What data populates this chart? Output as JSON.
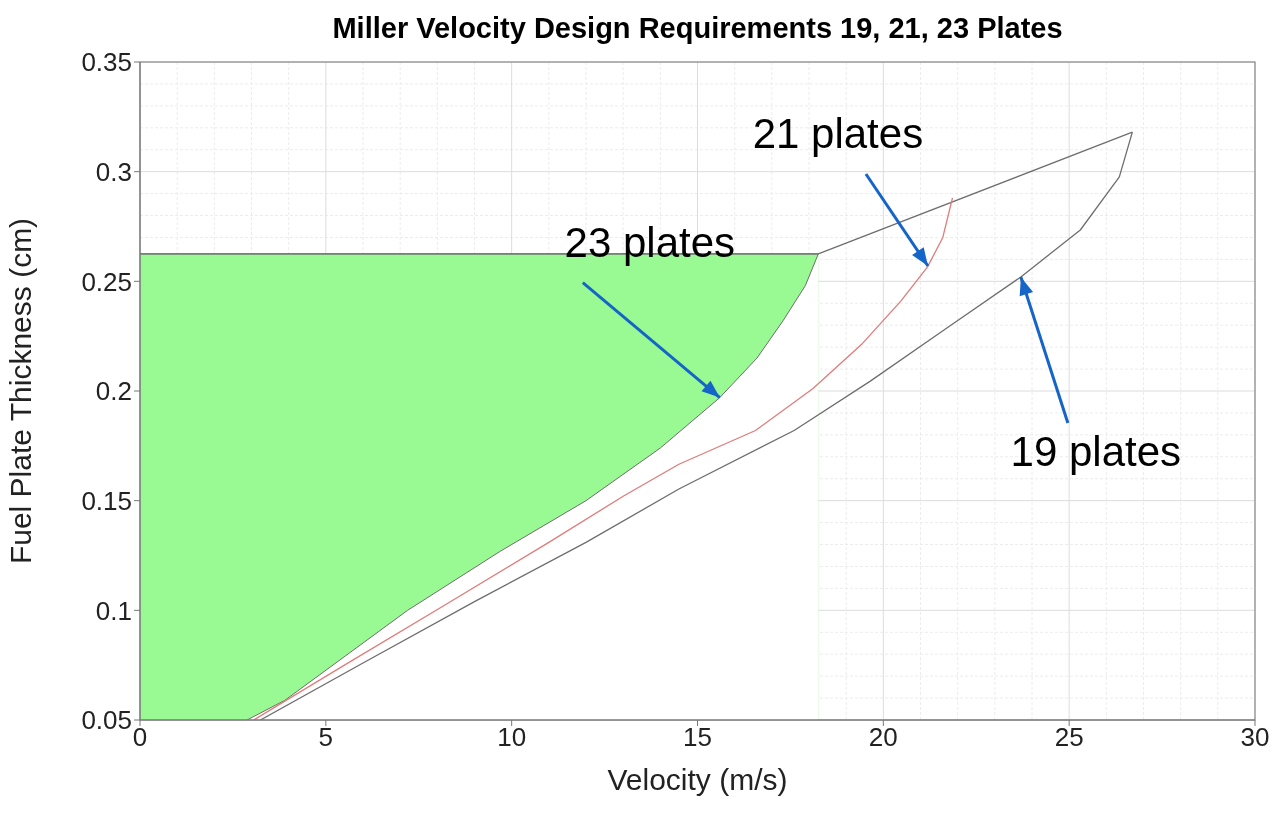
{
  "chart_data": {
    "type": "line",
    "title": "Miller Velocity Design Requirements 19, 21, 23 Plates",
    "xlabel": "Velocity (m/s)",
    "ylabel": "Fuel Plate Thickness (cm)",
    "xlim": [
      0,
      30
    ],
    "xticks": [
      0,
      5,
      10,
      15,
      20,
      25,
      30
    ],
    "ylim": [
      0.05,
      0.35
    ],
    "yticks": [
      0.05,
      0.1,
      0.15,
      0.2,
      0.25,
      0.3,
      0.35
    ],
    "grid": true,
    "series": [
      {
        "type": "area",
        "color": "#99fa93",
        "x": [
          0,
          18.25
        ],
        "values": [
          0.2625,
          0.2625
        ]
      },
      {
        "type": "area",
        "color": "#ffffff",
        "x": [
          2.88,
          3.9,
          7.2,
          9.7,
          12.0,
          14.0,
          15.6,
          16.6,
          17.3,
          17.9,
          18.25
        ],
        "values": [
          0.05,
          0.059,
          0.1,
          0.127,
          0.15,
          0.174,
          0.197,
          0.215,
          0.232,
          0.248,
          0.2625
        ]
      },
      {
        "color": "#6e6e6e",
        "x": [
          0,
          18.25,
          26.7
        ],
        "values": [
          0.2625,
          0.2625,
          0.318
        ]
      },
      {
        "color": "#e07b7b",
        "x": [
          3.06,
          5.5,
          8.16,
          11.0,
          13.0,
          14.5,
          16.56,
          18.1,
          19.44,
          20.47,
          21.19,
          21.6,
          21.86
        ],
        "values": [
          0.05,
          0.075,
          0.102,
          0.131,
          0.152,
          0.1666,
          0.182,
          0.201,
          0.2217,
          0.241,
          0.2566,
          0.27,
          0.288
        ]
      },
      {
        "color": "#6e6e6e",
        "x": [
          3.24,
          6.0,
          9.0,
          12.0,
          14.5,
          17.6,
          19.65,
          21.7,
          23.7,
          25.3,
          26.35,
          26.7
        ],
        "values": [
          0.05,
          0.076,
          0.104,
          0.131,
          0.1553,
          0.182,
          0.2045,
          0.2286,
          0.252,
          0.2734,
          0.2976,
          0.318
        ]
      }
    ],
    "annotations": [
      {
        "text": "23 plates",
        "x": 15.6,
        "y": 0.197
      },
      {
        "text": "21 plates",
        "x": 21.2,
        "y": 0.257
      },
      {
        "text": "19 plates",
        "x": 23.7,
        "y": 0.252
      }
    ]
  }
}
